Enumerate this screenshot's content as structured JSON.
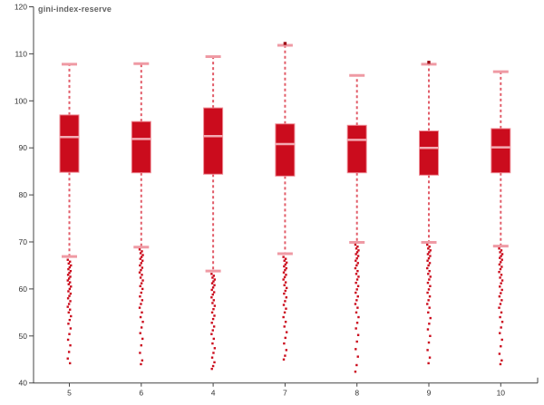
{
  "title": "gini-index-reserve",
  "colors": {
    "box_fill": "#cb0c1d",
    "box_stroke": "#ee8b95",
    "median": "#f3aab2",
    "whisker": "#dd4150",
    "cap": "#ef9aa4",
    "outlier": "#cb0c1d",
    "upper_outlier": "#9c0a14",
    "axis": "#444444",
    "tick_label": "#333333",
    "title_text": "#636363"
  },
  "chart_data": {
    "type": "box",
    "title": "gini-index-reserve",
    "xlabel": "",
    "ylabel": "",
    "ylim": [
      40,
      120
    ],
    "yticks": [
      40,
      50,
      60,
      70,
      80,
      90,
      100,
      110,
      120
    ],
    "grid": false,
    "legend": "none",
    "categories": [
      "5",
      "6",
      "4",
      "7",
      "8",
      "9",
      "10"
    ],
    "series": [
      {
        "category": "5",
        "upper_whisker": 107.8,
        "q3": 97.0,
        "median": 92.3,
        "q1": 84.8,
        "lower_whisker": 66.9,
        "upper_outliers": [],
        "outliers": [
          66.2,
          65.8,
          65.4,
          65.0,
          64.6,
          64.2,
          63.8,
          63.4,
          63.0,
          62.6,
          62.2,
          61.8,
          61.4,
          61.0,
          60.5,
          60.0,
          59.5,
          59.0,
          58.5,
          58.0,
          57.4,
          56.8,
          56.2,
          55.6,
          55.0,
          54.2,
          53.4,
          52.6,
          51.6,
          50.4,
          49.2,
          48.0,
          46.6,
          45.2,
          44.2
        ]
      },
      {
        "category": "6",
        "upper_whisker": 107.9,
        "q3": 95.6,
        "median": 91.9,
        "q1": 84.7,
        "lower_whisker": 68.9,
        "upper_outliers": [],
        "outliers": [
          68.4,
          68.0,
          67.6,
          67.2,
          66.8,
          66.4,
          66.0,
          65.5,
          65.0,
          64.5,
          64.0,
          63.5,
          63.0,
          62.4,
          61.8,
          61.2,
          60.6,
          60.0,
          59.2,
          58.4,
          57.6,
          56.8,
          56.0,
          55.0,
          54.0,
          53.0,
          51.8,
          50.6,
          49.4,
          48.0,
          46.4,
          44.8,
          44.0
        ]
      },
      {
        "category": "4",
        "upper_whisker": 109.4,
        "q3": 98.5,
        "median": 92.5,
        "q1": 84.4,
        "lower_whisker": 63.8,
        "upper_outliers": [],
        "outliers": [
          63.2,
          62.8,
          62.4,
          62.0,
          61.6,
          61.2,
          60.8,
          60.3,
          59.8,
          59.3,
          58.8,
          58.2,
          57.6,
          57.0,
          56.4,
          55.7,
          55.0,
          54.3,
          53.6,
          52.8,
          52.0,
          51.2,
          50.4,
          49.4,
          48.4,
          47.4,
          46.4,
          45.4,
          44.4,
          43.6,
          43.0
        ]
      },
      {
        "category": "7",
        "upper_whisker": 111.8,
        "q3": 95.1,
        "median": 90.8,
        "q1": 84.0,
        "lower_whisker": 67.5,
        "upper_outliers": [
          112.2
        ],
        "outliers": [
          66.8,
          66.4,
          66.0,
          65.6,
          65.2,
          64.8,
          64.4,
          64.0,
          63.5,
          63.0,
          62.5,
          62.0,
          61.4,
          60.8,
          60.2,
          59.6,
          59.0,
          58.2,
          57.4,
          56.6,
          55.8,
          55.0,
          54.0,
          53.0,
          52.0,
          50.8,
          49.6,
          48.4,
          47.0,
          45.8,
          45.0
        ]
      },
      {
        "category": "8",
        "upper_whisker": 105.4,
        "q3": 94.8,
        "median": 91.7,
        "q1": 84.7,
        "lower_whisker": 69.9,
        "upper_outliers": [],
        "outliers": [
          69.4,
          69.0,
          68.6,
          68.2,
          67.8,
          67.4,
          67.0,
          66.5,
          66.0,
          65.5,
          65.0,
          64.4,
          63.8,
          63.2,
          62.6,
          62.0,
          61.3,
          60.6,
          59.9,
          59.2,
          58.4,
          57.6,
          56.8,
          56.0,
          55.0,
          54.0,
          52.8,
          51.6,
          50.2,
          48.8,
          47.2,
          45.6,
          43.8,
          42.4
        ]
      },
      {
        "category": "9",
        "upper_whisker": 107.8,
        "q3": 93.6,
        "median": 90.0,
        "q1": 84.2,
        "lower_whisker": 69.9,
        "upper_outliers": [
          108.2
        ],
        "outliers": [
          69.4,
          69.0,
          68.6,
          68.2,
          67.8,
          67.4,
          67.0,
          66.5,
          66.0,
          65.5,
          65.0,
          64.4,
          63.8,
          63.2,
          62.6,
          62.0,
          61.3,
          60.6,
          59.9,
          59.2,
          58.4,
          57.6,
          56.8,
          56.0,
          55.0,
          53.8,
          52.6,
          51.4,
          50.0,
          48.6,
          47.0,
          45.4,
          44.2
        ]
      },
      {
        "category": "10",
        "upper_whisker": 106.2,
        "q3": 94.1,
        "median": 90.1,
        "q1": 84.7,
        "lower_whisker": 69.1,
        "upper_outliers": [],
        "outliers": [
          68.6,
          68.2,
          67.8,
          67.4,
          67.0,
          66.6,
          66.2,
          65.7,
          65.2,
          64.7,
          64.2,
          63.6,
          63.0,
          62.4,
          61.8,
          61.2,
          60.5,
          59.8,
          59.1,
          58.4,
          57.6,
          56.8,
          56.0,
          55.0,
          54.0,
          53.0,
          51.8,
          50.6,
          49.2,
          47.8,
          46.2,
          44.8,
          44.0
        ]
      }
    ]
  }
}
